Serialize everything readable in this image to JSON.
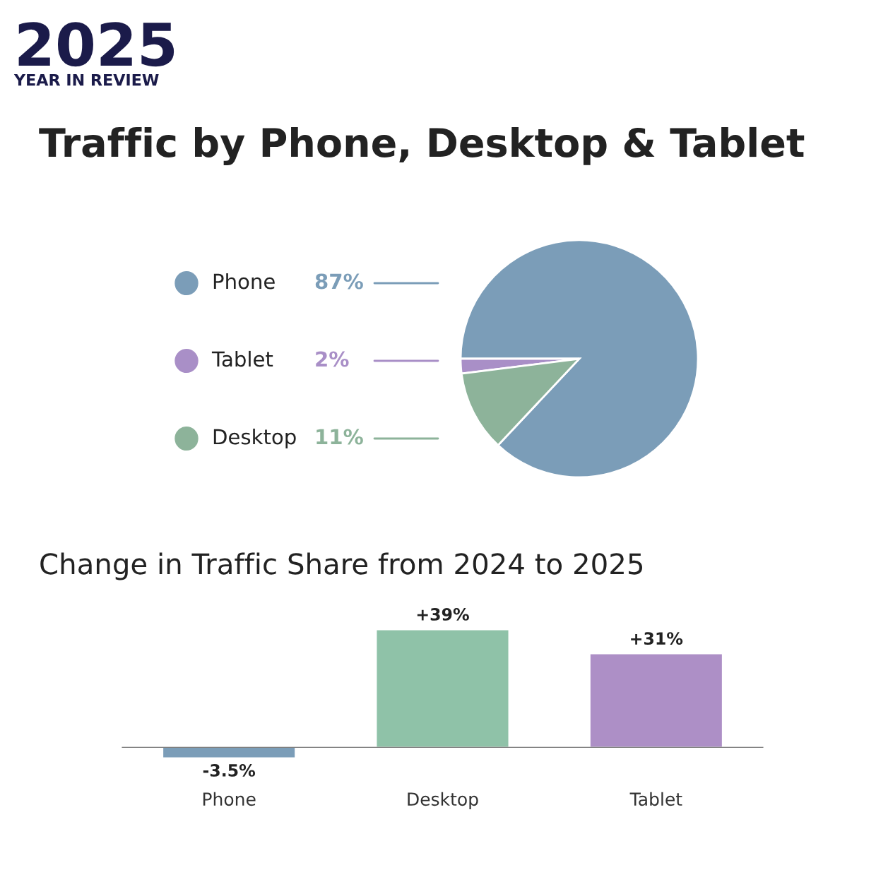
{
  "chart_data": [
    {
      "type": "pie",
      "title": "Traffic by Phone, Desktop & Tablet",
      "annotations": [
        "2025",
        "YEAR IN REVIEW"
      ],
      "categories": [
        "Phone",
        "Tablet",
        "Desktop"
      ],
      "values": [
        87,
        2,
        11
      ],
      "colors": [
        "#7b9db8",
        "#a98fc7",
        "#8db39a"
      ],
      "value_labels": [
        "87%",
        "2%",
        "11%"
      ],
      "legend": "left"
    },
    {
      "type": "bar",
      "title": "Change in Traffic Share from 2024 to 2025",
      "categories": [
        "Phone",
        "Desktop",
        "Tablet"
      ],
      "values": [
        -3.5,
        39,
        31
      ],
      "colors": [
        "#7b9db8",
        "#8fc2a8",
        "#ad8fc6"
      ],
      "value_labels": [
        "-3.5%",
        "+39%",
        "+31%"
      ]
    }
  ]
}
